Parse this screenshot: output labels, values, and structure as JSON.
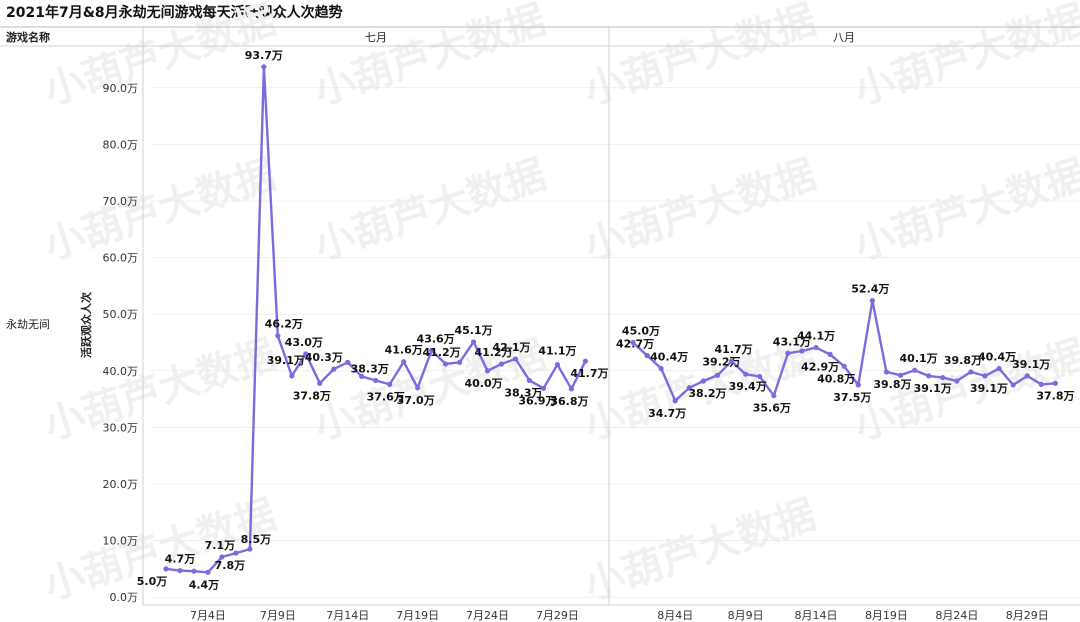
{
  "title": "2021年7月&8月永劫无间游戏每天活跃观众人次趋势",
  "header": {
    "row_header_label": "游戏名称",
    "row_label": "永劫无间"
  },
  "watermark": "小葫芦大数据",
  "colors": {
    "line": "#7b6be0",
    "grid": "#e6e6e6",
    "border": "#d0d0d0"
  },
  "chart_data": [
    {
      "type": "line",
      "panel": "七月",
      "ylabel": "活跃观众人次",
      "ylim": [
        0,
        100
      ],
      "yticks": [
        0,
        10,
        20,
        30,
        40,
        50,
        60,
        70,
        80,
        90
      ],
      "ytick_labels": [
        "0.0万",
        "10.0万",
        "20.0万",
        "30.0万",
        "40.0万",
        "50.0万",
        "60.0万",
        "70.0万",
        "80.0万",
        "90.0万"
      ],
      "x": [
        1,
        2,
        3,
        4,
        5,
        6,
        7,
        8,
        9,
        10,
        11,
        12,
        13,
        14,
        15,
        16,
        17,
        18,
        19,
        20,
        21,
        22,
        23,
        24,
        25,
        26,
        27,
        28,
        29,
        30,
        31
      ],
      "xticks": [
        4,
        9,
        14,
        19,
        24,
        29
      ],
      "xtick_labels": [
        "7月4日",
        "7月9日",
        "7月14日",
        "7月19日",
        "7月24日",
        "7月29日"
      ],
      "values": [
        5.0,
        4.7,
        4.6,
        4.4,
        7.1,
        7.8,
        8.5,
        93.7,
        46.2,
        39.1,
        43.0,
        37.8,
        40.3,
        41.5,
        39.0,
        38.3,
        37.6,
        41.6,
        37.0,
        43.6,
        41.2,
        41.5,
        45.1,
        40.0,
        41.2,
        42.1,
        38.3,
        36.9,
        41.1,
        36.8,
        41.7
      ],
      "labels": [
        "5.0万",
        "4.7万",
        "",
        "4.4万",
        "7.1万",
        "7.8万",
        "8.5万",
        "93.7万",
        "46.2万",
        "39.1万",
        "43.0万",
        "37.8万",
        "40.3万",
        "",
        "",
        "38.3万",
        "37.6万",
        "41.6万",
        "37.0万",
        "43.6万",
        "41.2万",
        "",
        "45.1万",
        "40.0万",
        "41.2万",
        "42.1万",
        "38.3万",
        "36.9万",
        "41.1万",
        "36.8万",
        "41.7万"
      ]
    },
    {
      "type": "line",
      "panel": "八月",
      "ylim": [
        0,
        100
      ],
      "x": [
        1,
        2,
        3,
        4,
        5,
        6,
        7,
        8,
        9,
        10,
        11,
        12,
        13,
        14,
        15,
        16,
        17,
        18,
        19,
        20,
        21,
        22,
        23,
        24,
        25,
        26,
        27,
        28,
        29,
        30,
        31
      ],
      "xticks": [
        4,
        9,
        14,
        19,
        24,
        29
      ],
      "xtick_labels": [
        "8月4日",
        "8月9日",
        "8月14日",
        "8月19日",
        "8月24日",
        "8月29日"
      ],
      "values": [
        45.0,
        42.7,
        40.4,
        34.7,
        37.0,
        38.2,
        39.2,
        41.7,
        39.4,
        39.0,
        35.6,
        43.1,
        43.5,
        44.1,
        42.9,
        40.8,
        37.5,
        52.4,
        39.8,
        39.2,
        40.1,
        39.1,
        38.8,
        38.2,
        39.8,
        39.1,
        40.4,
        37.5,
        39.1,
        37.6,
        37.8
      ],
      "labels": [
        "45.0万",
        "42.7万",
        "40.4万",
        "34.7万",
        "",
        "38.2万",
        "39.2万",
        "41.7万",
        "39.4万",
        "",
        "35.6万",
        "43.1万",
        "",
        "44.1万",
        "42.9万",
        "40.8万",
        "37.5万",
        "52.4万",
        "39.8万",
        "",
        "40.1万",
        "39.1万",
        "",
        "",
        "39.8万",
        "39.1万",
        "40.4万",
        "",
        "39.1万",
        "",
        "37.8万"
      ]
    }
  ]
}
